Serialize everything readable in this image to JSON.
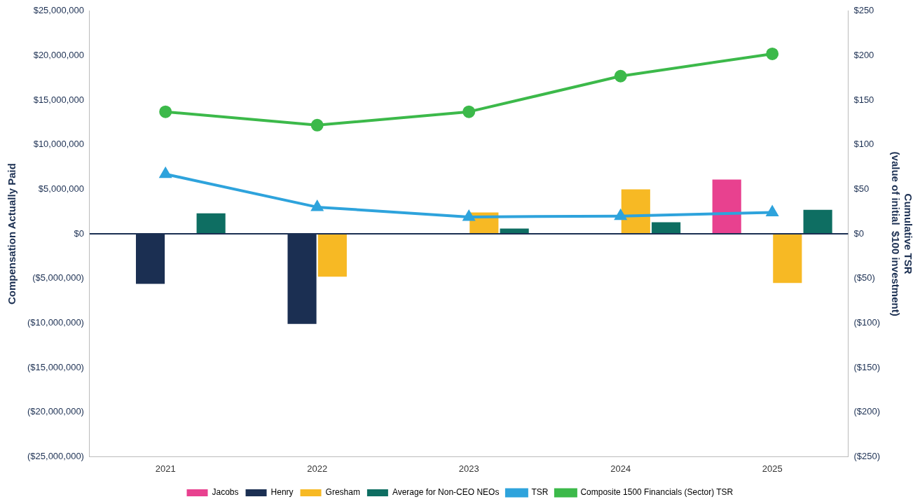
{
  "chart_data": {
    "type": "bar",
    "categories": [
      "2021",
      "2022",
      "2023",
      "2024",
      "2025"
    ],
    "ylabel": "Compensation Actually Paid",
    "y2label": "Cumulative TSR\n(value of initial  $100 investment)",
    "ylim": [
      -25000000,
      25000000
    ],
    "yticks": [
      {
        "value": -25000000,
        "label": "($25,000,000)"
      },
      {
        "value": -20000000,
        "label": "($20,000,000)"
      },
      {
        "value": -15000000,
        "label": "($15,000,000)"
      },
      {
        "value": -10000000,
        "label": "($10,000,000)"
      },
      {
        "value": -5000000,
        "label": "($5,000,000)"
      },
      {
        "value": 0,
        "label": "$0"
      },
      {
        "value": 5000000,
        "label": "$5,000,000"
      },
      {
        "value": 10000000,
        "label": "$10,000,000"
      },
      {
        "value": 15000000,
        "label": "$15,000,000"
      },
      {
        "value": 20000000,
        "label": "$20,000,000"
      },
      {
        "value": 25000000,
        "label": "$25,000,000"
      }
    ],
    "y2lim": [
      -250,
      250
    ],
    "y2ticks": [
      {
        "value": -250,
        "label": "($250)"
      },
      {
        "value": -200,
        "label": "($200)"
      },
      {
        "value": -150,
        "label": "($150)"
      },
      {
        "value": -100,
        "label": "($100)"
      },
      {
        "value": -50,
        "label": "($50)"
      },
      {
        "value": 0,
        "label": "$0"
      },
      {
        "value": 50,
        "label": "$50"
      },
      {
        "value": 100,
        "label": "$100"
      },
      {
        "value": 150,
        "label": "$150"
      },
      {
        "value": 200,
        "label": "$200"
      },
      {
        "value": 250,
        "label": "$250"
      }
    ],
    "series": [
      {
        "name": "Jacobs",
        "color": "#e8418f",
        "values": [
          null,
          null,
          null,
          null,
          6100000
        ]
      },
      {
        "name": "Henry",
        "color": "#1b2f52",
        "values": [
          -5600000,
          -10100000,
          null,
          null,
          null
        ]
      },
      {
        "name": "Gresham",
        "color": "#f7b924",
        "values": [
          null,
          -4800000,
          2400000,
          5000000,
          -5500000
        ]
      },
      {
        "name": "Average for Non-CEO NEOs",
        "color": "#0e6e62",
        "values": [
          2300000,
          null,
          600000,
          1300000,
          2700000
        ]
      },
      {
        "name": "TSR",
        "type": "line",
        "axis": "y2",
        "marker": "triangle",
        "color": "#2ea3dc",
        "values": [
          67,
          30,
          19,
          20,
          24
        ]
      },
      {
        "name": "Composite 1500 Financials (Sector) TSR",
        "type": "line",
        "axis": "y2",
        "marker": "circle",
        "color": "#3cb94a",
        "values": [
          137,
          122,
          137,
          177,
          202
        ]
      }
    ],
    "ref_lines": [
      {
        "axis": "y",
        "value": 0,
        "color": "#1b2f52"
      }
    ],
    "grid": false,
    "legend": "bottom"
  }
}
